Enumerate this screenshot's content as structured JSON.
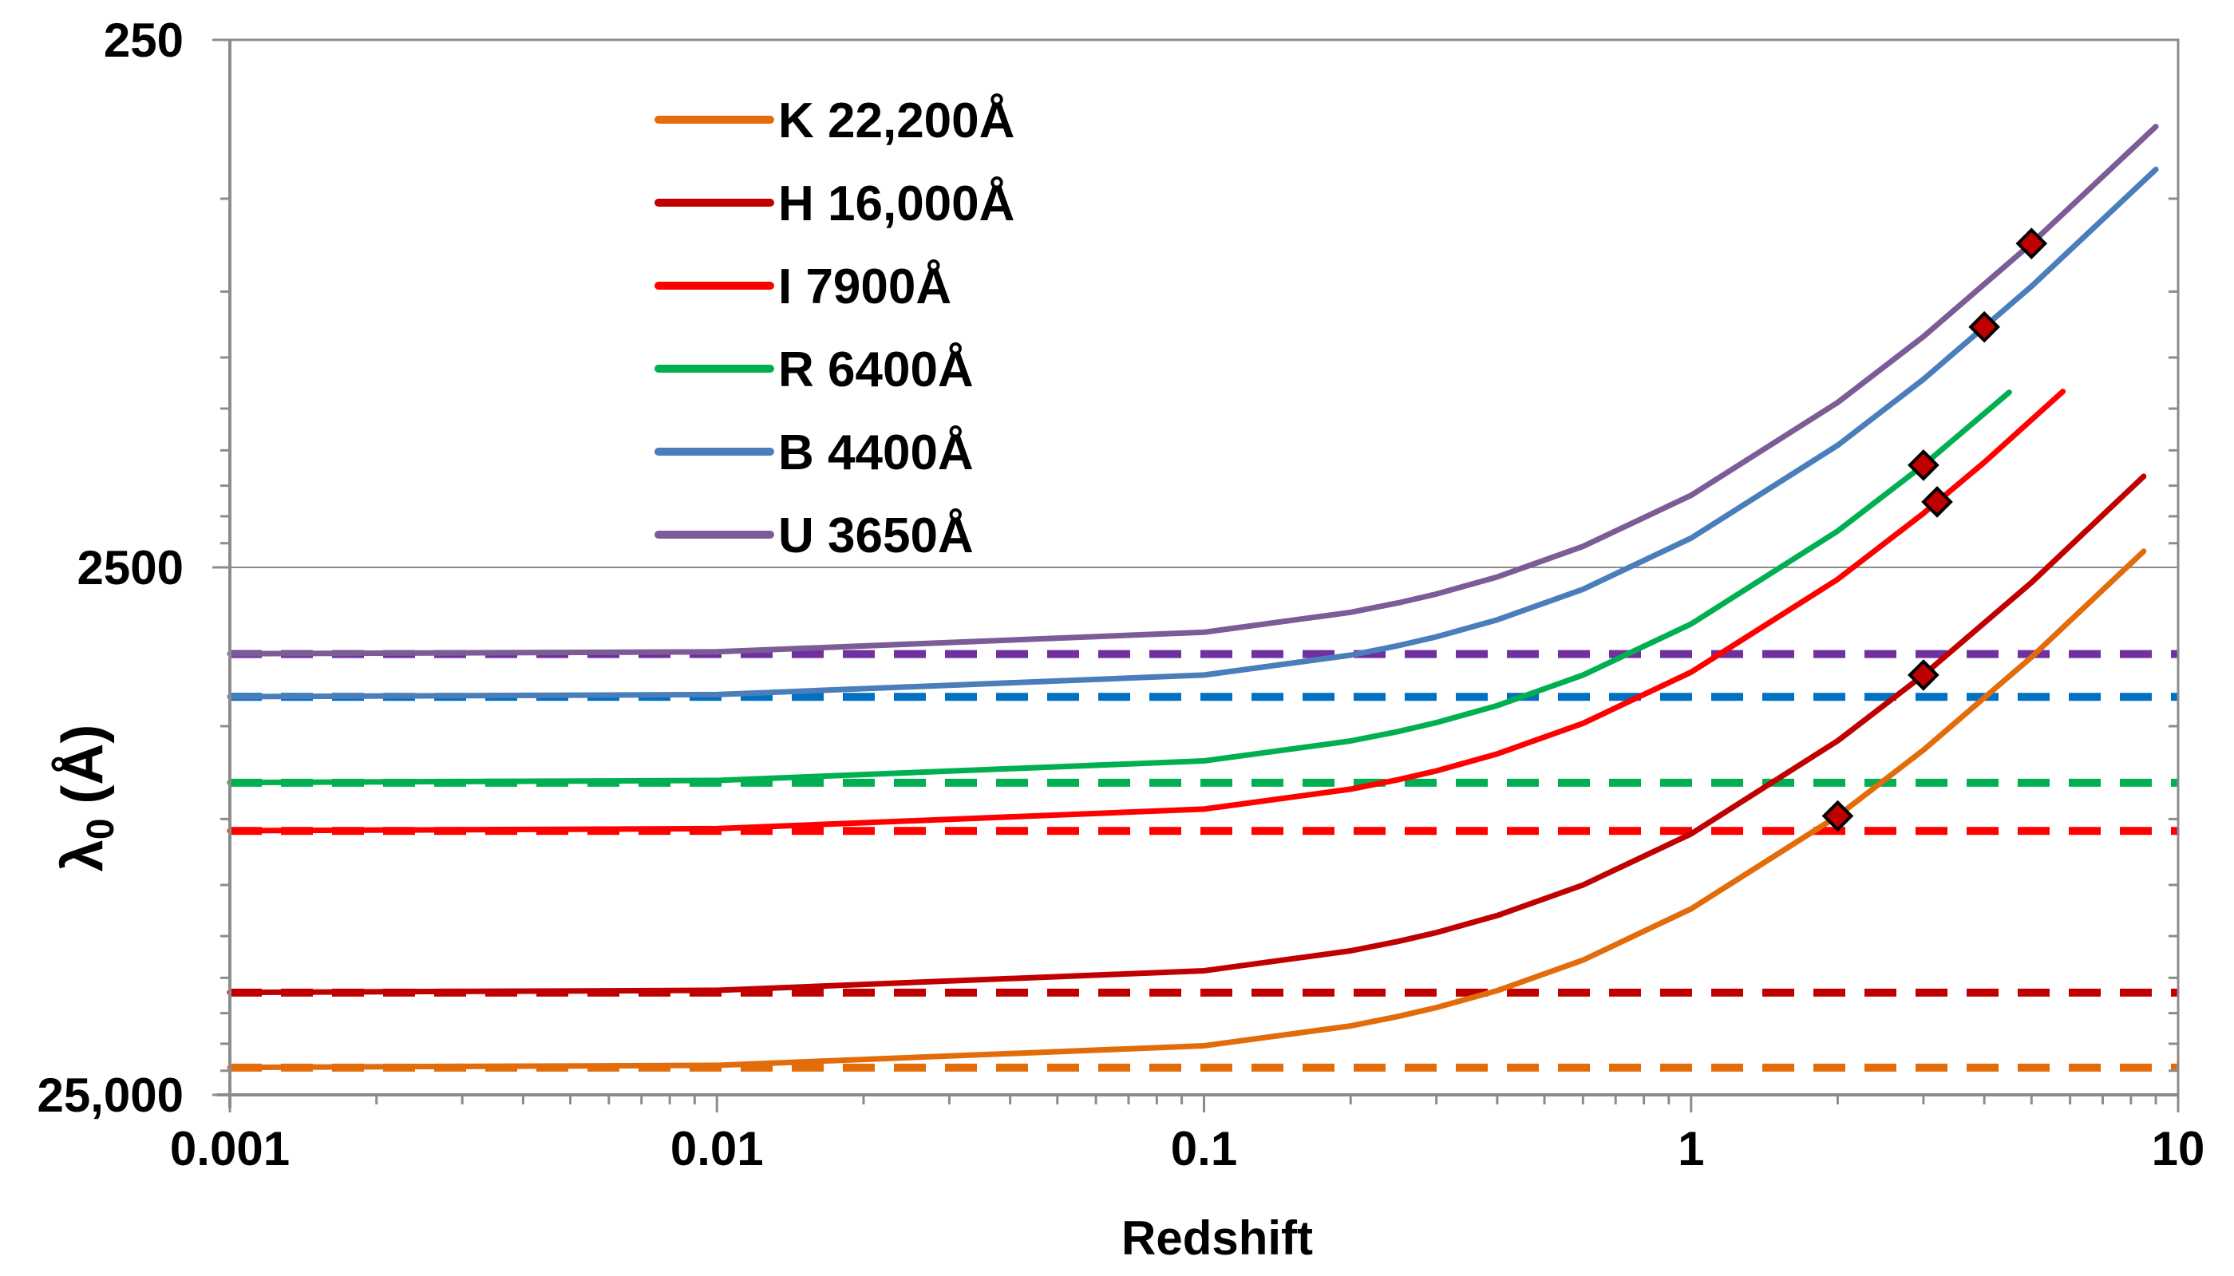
{
  "chart_data": {
    "type": "line",
    "title": "",
    "xlabel": "Redshift",
    "ylabel": "λ",
    "ylabel_subscript": "0",
    "ylabel_unit": "(Å)",
    "x_scale": "log",
    "y_scale": "log (reversed)",
    "xlim": [
      0.001,
      10
    ],
    "ylim": [
      250,
      25000
    ],
    "x_tick_labels": [
      "0.001",
      "0.01",
      "0.1",
      "1",
      "10"
    ],
    "y_tick_labels": [
      "250",
      "2500",
      "25,000"
    ],
    "legend_placement": "top-left",
    "series": [
      {
        "name": "K  22,200Å",
        "band": "K",
        "wavelength": 22200,
        "color": "#e36c0a",
        "z_max": 8.5,
        "marker_z": 2.0,
        "knots": [
          [
            0.001,
            22178
          ],
          [
            0.01,
            21980
          ],
          [
            0.1,
            20180
          ],
          [
            0.2,
            18500
          ],
          [
            0.25,
            17760
          ],
          [
            0.3,
            17080
          ],
          [
            0.4,
            15860
          ],
          [
            0.6,
            13880
          ],
          [
            1.0,
            11100
          ],
          [
            2.0,
            7400
          ],
          [
            3.0,
            5550
          ],
          [
            5.0,
            3700
          ],
          [
            8.5,
            2330
          ]
        ]
      },
      {
        "name": "H  16,000Å",
        "band": "H",
        "wavelength": 16000,
        "color": "#c00000",
        "z_max": 8.5,
        "marker_z": 3.0,
        "knots": [
          [
            0.001,
            15984
          ],
          [
            0.01,
            15842
          ],
          [
            0.1,
            14545
          ],
          [
            0.2,
            13333
          ],
          [
            0.25,
            12800
          ],
          [
            0.3,
            12310
          ],
          [
            0.4,
            11430
          ],
          [
            0.6,
            10000
          ],
          [
            1.0,
            8000
          ],
          [
            2.0,
            5330
          ],
          [
            3.0,
            4000
          ],
          [
            5.0,
            2670
          ],
          [
            8.5,
            1680
          ]
        ]
      },
      {
        "name": "I   7900Å",
        "band": "I",
        "wavelength": 7900,
        "color": "#ff0000",
        "z_max": 5.8,
        "marker_z": 3.2,
        "knots": [
          [
            0.001,
            7892
          ],
          [
            0.01,
            7822
          ],
          [
            0.1,
            7182
          ],
          [
            0.2,
            6583
          ],
          [
            0.25,
            6320
          ],
          [
            0.3,
            6077
          ],
          [
            0.4,
            5643
          ],
          [
            0.6,
            4938
          ],
          [
            1.0,
            3950
          ],
          [
            2.0,
            2633
          ],
          [
            3.0,
            1975
          ],
          [
            4.0,
            1580
          ],
          [
            5.8,
            1160
          ]
        ]
      },
      {
        "name": "R  6400Å",
        "band": "R",
        "wavelength": 6400,
        "color": "#00b050",
        "z_max": 4.5,
        "marker_z": 3.0,
        "knots": [
          [
            0.001,
            6394
          ],
          [
            0.01,
            6337
          ],
          [
            0.1,
            5818
          ],
          [
            0.2,
            5333
          ],
          [
            0.25,
            5120
          ],
          [
            0.3,
            4923
          ],
          [
            0.4,
            4571
          ],
          [
            0.6,
            4000
          ],
          [
            1.0,
            3200
          ],
          [
            2.0,
            2133
          ],
          [
            3.0,
            1600
          ],
          [
            4.5,
            1164
          ]
        ]
      },
      {
        "name": "B  4400Å",
        "band": "B",
        "wavelength": 4400,
        "color": "#4a7ebb",
        "z_max": 9.0,
        "marker_z": 4.0,
        "knots": [
          [
            0.001,
            4396
          ],
          [
            0.01,
            4356
          ],
          [
            0.1,
            4000
          ],
          [
            0.2,
            3667
          ],
          [
            0.25,
            3520
          ],
          [
            0.3,
            3385
          ],
          [
            0.4,
            3143
          ],
          [
            0.6,
            2750
          ],
          [
            1.0,
            2200
          ],
          [
            2.0,
            1467
          ],
          [
            3.0,
            1100
          ],
          [
            5.0,
            733
          ],
          [
            9.0,
            440
          ]
        ]
      },
      {
        "name": "U  3650Å",
        "band": "U",
        "wavelength": 3650,
        "color": "#7b5c97",
        "z_max": 9.0,
        "marker_z": 5.0,
        "knots": [
          [
            0.001,
            3646
          ],
          [
            0.01,
            3614
          ],
          [
            0.1,
            3318
          ],
          [
            0.2,
            3042
          ],
          [
            0.25,
            2920
          ],
          [
            0.3,
            2808
          ],
          [
            0.4,
            2607
          ],
          [
            0.6,
            2281
          ],
          [
            1.0,
            1825
          ],
          [
            2.0,
            1217
          ],
          [
            3.0,
            913
          ],
          [
            5.0,
            608
          ],
          [
            9.0,
            365
          ]
        ]
      }
    ],
    "dashed_reference_lines": [
      {
        "band": "U",
        "value": 3650,
        "color": "#7030a0"
      },
      {
        "band": "B",
        "value": 4400,
        "color": "#0070c0"
      },
      {
        "band": "R",
        "value": 6400,
        "color": "#00b050"
      },
      {
        "band": "I",
        "value": 7900,
        "color": "#ff0000"
      },
      {
        "band": "H",
        "value": 16000,
        "color": "#c00000"
      },
      {
        "band": "K",
        "value": 22200,
        "color": "#e36c0a"
      }
    ],
    "marker_style": {
      "shape": "diamond",
      "fill": "#c00000",
      "stroke": "#000000"
    }
  }
}
